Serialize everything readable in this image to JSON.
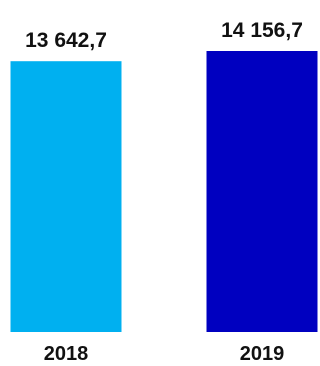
{
  "chart_data": {
    "type": "bar",
    "categories": [
      "2018",
      "2019"
    ],
    "values": [
      13642.7,
      14156.7
    ],
    "value_labels": [
      "13 642,7",
      "14 156,7"
    ],
    "colors": [
      "#00b0f0",
      "#0000c0"
    ],
    "xlabel": "",
    "ylabel": "",
    "grid": false,
    "legend": "none"
  }
}
